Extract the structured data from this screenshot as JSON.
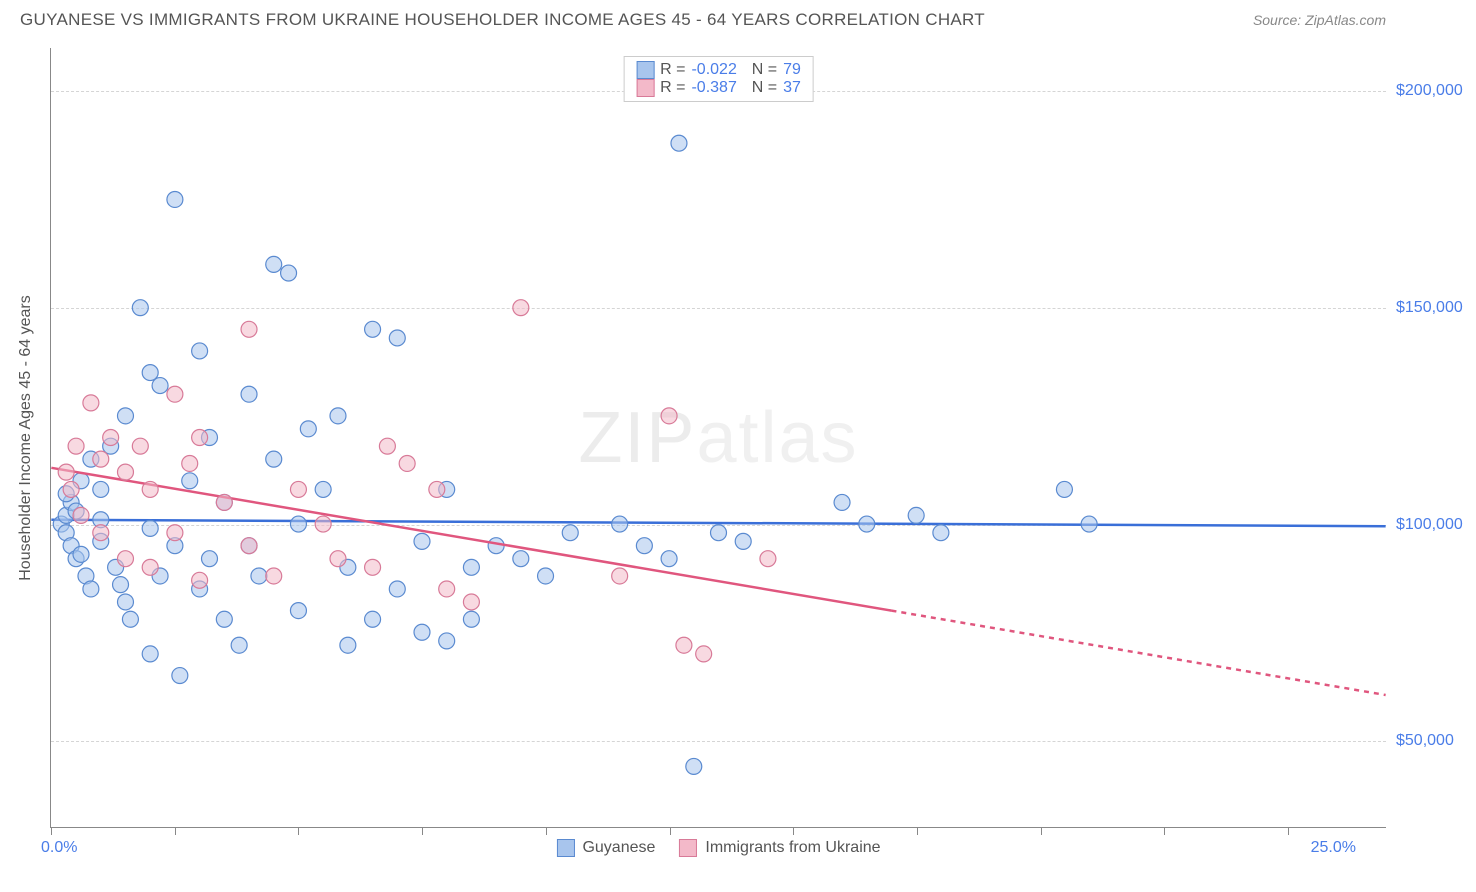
{
  "header": {
    "title": "GUYANESE VS IMMIGRANTS FROM UKRAINE HOUSEHOLDER INCOME AGES 45 - 64 YEARS CORRELATION CHART",
    "source": "Source: ZipAtlas.com"
  },
  "watermark": {
    "bold": "ZIP",
    "thin": "atlas"
  },
  "yaxis": {
    "label": "Householder Income Ages 45 - 64 years",
    "min": 30000,
    "max": 210000,
    "gridlines": [
      50000,
      100000,
      150000,
      200000
    ],
    "tick_labels": [
      "$50,000",
      "$100,000",
      "$150,000",
      "$200,000"
    ],
    "tick_color": "#4a7de8"
  },
  "xaxis": {
    "min": 0,
    "max": 27,
    "ticks": [
      0,
      2.5,
      5,
      7.5,
      10,
      12.5,
      15,
      17.5,
      20,
      22.5,
      25
    ],
    "label_left": "0.0%",
    "label_right": "25.0%",
    "label_color": "#4a7de8"
  },
  "legend_top": {
    "rows": [
      {
        "swatch_fill": "#a8c5ed",
        "swatch_border": "#5a8ad0",
        "r": "-0.022",
        "n": "79"
      },
      {
        "swatch_fill": "#f3b9c9",
        "swatch_border": "#d87a98",
        "r": "-0.387",
        "n": "37"
      }
    ]
  },
  "legend_bottom": {
    "items": [
      {
        "swatch_fill": "#a8c5ed",
        "swatch_border": "#5a8ad0",
        "label": "Guyanese"
      },
      {
        "swatch_fill": "#f3b9c9",
        "swatch_border": "#d87a98",
        "label": "Immigrants from Ukraine"
      }
    ]
  },
  "scatter": {
    "marker_radius": 8,
    "marker_opacity": 0.55,
    "series": [
      {
        "name": "Guyanese",
        "fill": "#a8c5ed",
        "stroke": "#5a8ad0",
        "points": [
          [
            0.2,
            100000
          ],
          [
            0.3,
            102000
          ],
          [
            0.3,
            98000
          ],
          [
            0.4,
            105000
          ],
          [
            0.4,
            95000
          ],
          [
            0.5,
            103000
          ],
          [
            0.5,
            92000
          ],
          [
            0.6,
            110000
          ],
          [
            0.7,
            88000
          ],
          [
            0.8,
            115000
          ],
          [
            0.8,
            85000
          ],
          [
            1.0,
            108000
          ],
          [
            1.0,
            96000
          ],
          [
            1.2,
            118000
          ],
          [
            1.3,
            90000
          ],
          [
            1.5,
            125000
          ],
          [
            1.5,
            82000
          ],
          [
            1.6,
            78000
          ],
          [
            1.8,
            150000
          ],
          [
            2.0,
            70000
          ],
          [
            2.0,
            135000
          ],
          [
            2.2,
            132000
          ],
          [
            2.2,
            88000
          ],
          [
            2.5,
            175000
          ],
          [
            2.5,
            95000
          ],
          [
            2.6,
            65000
          ],
          [
            2.8,
            110000
          ],
          [
            3.0,
            140000
          ],
          [
            3.0,
            85000
          ],
          [
            3.2,
            120000
          ],
          [
            3.5,
            78000
          ],
          [
            3.5,
            105000
          ],
          [
            3.8,
            72000
          ],
          [
            4.0,
            95000
          ],
          [
            4.0,
            130000
          ],
          [
            4.2,
            88000
          ],
          [
            4.5,
            160000
          ],
          [
            4.5,
            115000
          ],
          [
            4.8,
            158000
          ],
          [
            5.0,
            80000
          ],
          [
            5.0,
            100000
          ],
          [
            5.2,
            122000
          ],
          [
            5.5,
            108000
          ],
          [
            5.8,
            125000
          ],
          [
            6.0,
            90000
          ],
          [
            6.0,
            72000
          ],
          [
            6.5,
            78000
          ],
          [
            6.5,
            145000
          ],
          [
            7.0,
            85000
          ],
          [
            7.0,
            143000
          ],
          [
            7.5,
            75000
          ],
          [
            7.5,
            96000
          ],
          [
            8.0,
            73000
          ],
          [
            8.0,
            108000
          ],
          [
            8.5,
            90000
          ],
          [
            8.5,
            78000
          ],
          [
            9.0,
            95000
          ],
          [
            9.5,
            92000
          ],
          [
            10.0,
            88000
          ],
          [
            10.5,
            98000
          ],
          [
            11.5,
            100000
          ],
          [
            12.0,
            95000
          ],
          [
            12.5,
            92000
          ],
          [
            12.7,
            188000
          ],
          [
            13.0,
            44000
          ],
          [
            13.5,
            98000
          ],
          [
            14.0,
            96000
          ],
          [
            16.0,
            105000
          ],
          [
            16.5,
            100000
          ],
          [
            17.5,
            102000
          ],
          [
            18.0,
            98000
          ],
          [
            20.5,
            108000
          ],
          [
            21.0,
            100000
          ],
          [
            0.3,
            107000
          ],
          [
            0.6,
            93000
          ],
          [
            1.0,
            101000
          ],
          [
            1.4,
            86000
          ],
          [
            2.0,
            99000
          ],
          [
            3.2,
            92000
          ]
        ],
        "trend": {
          "x1": 0,
          "y1": 101000,
          "x2": 27,
          "y2": 99500,
          "color": "#3a6fd8",
          "width": 2.5
        }
      },
      {
        "name": "Immigrants from Ukraine",
        "fill": "#f3b9c9",
        "stroke": "#d87a98",
        "points": [
          [
            0.3,
            112000
          ],
          [
            0.4,
            108000
          ],
          [
            0.5,
            118000
          ],
          [
            0.6,
            102000
          ],
          [
            0.8,
            128000
          ],
          [
            1.0,
            115000
          ],
          [
            1.0,
            98000
          ],
          [
            1.2,
            120000
          ],
          [
            1.5,
            112000
          ],
          [
            1.5,
            92000
          ],
          [
            1.8,
            118000
          ],
          [
            2.0,
            90000
          ],
          [
            2.0,
            108000
          ],
          [
            2.5,
            130000
          ],
          [
            2.5,
            98000
          ],
          [
            2.8,
            114000
          ],
          [
            3.0,
            120000
          ],
          [
            3.0,
            87000
          ],
          [
            3.5,
            105000
          ],
          [
            4.0,
            145000
          ],
          [
            4.0,
            95000
          ],
          [
            4.5,
            88000
          ],
          [
            5.0,
            108000
          ],
          [
            5.5,
            100000
          ],
          [
            5.8,
            92000
          ],
          [
            6.5,
            90000
          ],
          [
            6.8,
            118000
          ],
          [
            7.2,
            114000
          ],
          [
            7.8,
            108000
          ],
          [
            8.0,
            85000
          ],
          [
            8.5,
            82000
          ],
          [
            9.5,
            150000
          ],
          [
            11.5,
            88000
          ],
          [
            12.5,
            125000
          ],
          [
            12.8,
            72000
          ],
          [
            13.2,
            70000
          ],
          [
            14.5,
            92000
          ]
        ],
        "trend": {
          "x1": 0,
          "y1": 113000,
          "x2": 17,
          "y2": 80000,
          "x3": 27,
          "y3": 60500,
          "color": "#e0567e",
          "width": 2.5
        }
      }
    ]
  },
  "colors": {
    "background": "#ffffff",
    "axis": "#888888",
    "grid": "#d5d5d5",
    "text": "#555555"
  }
}
